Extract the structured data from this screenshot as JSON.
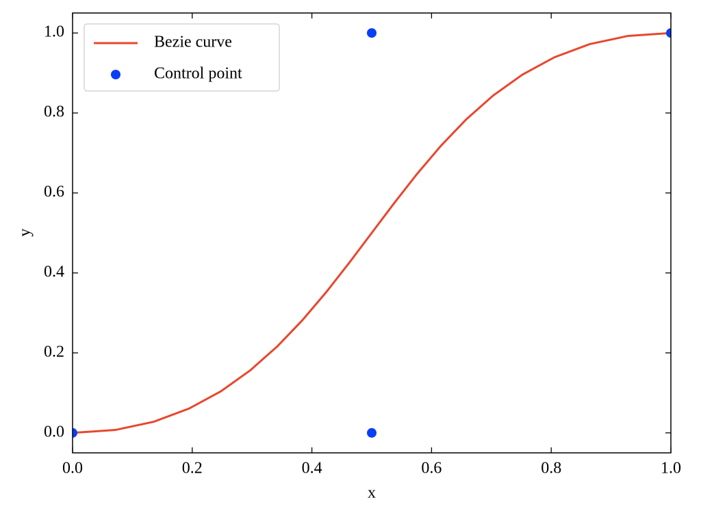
{
  "chart_data": {
    "type": "line",
    "xlabel": "x",
    "ylabel": "y",
    "xlim": [
      0,
      1
    ],
    "ylim": [
      -0.05,
      1.05
    ],
    "xticks": [
      {
        "value": 0,
        "label": "0.0"
      },
      {
        "value": 0.2,
        "label": "0.2"
      },
      {
        "value": 0.4,
        "label": "0.4"
      },
      {
        "value": 0.6,
        "label": "0.6"
      },
      {
        "value": 0.8,
        "label": "0.8"
      },
      {
        "value": 1,
        "label": "1.0"
      }
    ],
    "yticks": [
      {
        "value": 0,
        "label": "0.0"
      },
      {
        "value": 0.2,
        "label": "0.2"
      },
      {
        "value": 0.4,
        "label": "0.4"
      },
      {
        "value": 0.6,
        "label": "0.6"
      },
      {
        "value": 0.8,
        "label": "0.8"
      },
      {
        "value": 1,
        "label": "1.0"
      }
    ],
    "legend": "upper left",
    "series": [
      {
        "name": "Bezie curve",
        "type": "line",
        "color": "#e8472e",
        "x": [
          0,
          0.071375,
          0.136,
          0.194625,
          0.248,
          0.296875,
          0.342,
          0.384125,
          0.424,
          0.462375,
          0.5,
          0.537625,
          0.576,
          0.615875,
          0.658,
          0.703125,
          0.752,
          0.805375,
          0.864,
          0.928625,
          1
        ],
        "values": [
          0,
          0.00725,
          0.028,
          0.06075,
          0.104,
          0.15625,
          0.216,
          0.28175,
          0.352,
          0.42525,
          0.5,
          0.57475,
          0.648,
          0.71825,
          0.784,
          0.84375,
          0.896,
          0.93925,
          0.972,
          0.99275,
          1
        ]
      },
      {
        "name": "Control point",
        "type": "scatter",
        "color": "#0a3ff5",
        "x": [
          0,
          0.5,
          0.5,
          1
        ],
        "values": [
          0,
          0,
          1,
          1
        ]
      }
    ]
  }
}
